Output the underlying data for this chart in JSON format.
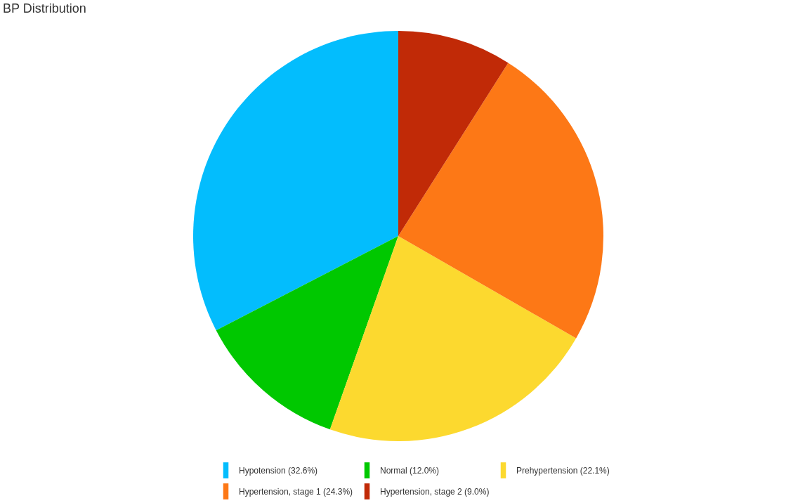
{
  "chart_data": {
    "type": "pie",
    "title": "BP Distribution",
    "categories": [
      "Hypotension (32.6%)",
      "Normal (12.0%)",
      "Prehypertension (22.1%)",
      "Hypertension, stage 1 (24.3%)",
      "Hypertension, stage 2 (9.0%)"
    ],
    "values": [
      32.6,
      12.0,
      22.1,
      24.3,
      9.0
    ],
    "colors": [
      "#03bdfd",
      "#00c800",
      "#fcd92f",
      "#fd7816",
      "#c12a07"
    ],
    "legend": "bottom"
  }
}
